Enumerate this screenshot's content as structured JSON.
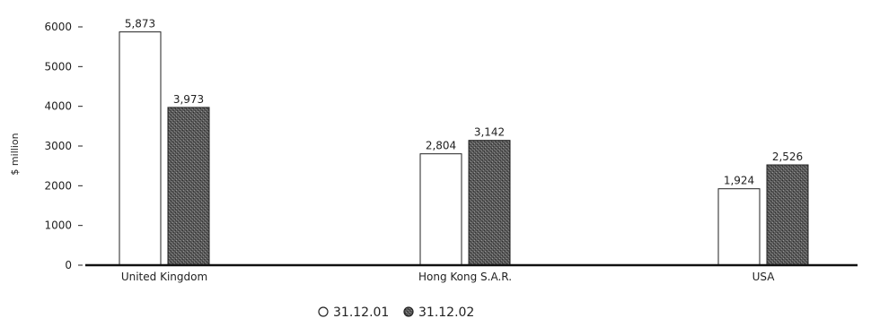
{
  "chart_data": {
    "type": "bar",
    "title": "",
    "xlabel": "",
    "ylabel": "$ million",
    "ylim": [
      0,
      6000
    ],
    "yticks": [
      0,
      1000,
      2000,
      3000,
      4000,
      5000,
      6000
    ],
    "categories": [
      "United Kingdom",
      "Hong Kong S.A.R.",
      "USA"
    ],
    "series": [
      {
        "name": "31.12.01",
        "values": [
          5873,
          2804,
          1924
        ],
        "labels": [
          "5,873",
          "2,804",
          "1,924"
        ],
        "fill": "#ffffff"
      },
      {
        "name": "31.12.02",
        "values": [
          3973,
          3142,
          2526
        ],
        "labels": [
          "3,973",
          "3,142",
          "2,526"
        ],
        "fill": "#5a5a5a"
      }
    ],
    "legend_position": "bottom-center",
    "grid": false
  }
}
